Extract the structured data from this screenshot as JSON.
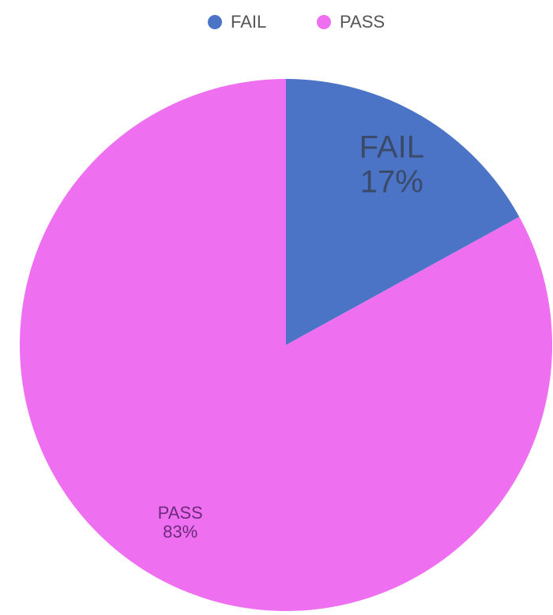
{
  "chart_data": {
    "type": "pie",
    "categories": [
      "FAIL",
      "PASS"
    ],
    "values": [
      17,
      83
    ],
    "value_labels": [
      "17%",
      "83%"
    ],
    "colors": [
      "#4b73c6",
      "#ee70f0"
    ],
    "legend": "top"
  }
}
